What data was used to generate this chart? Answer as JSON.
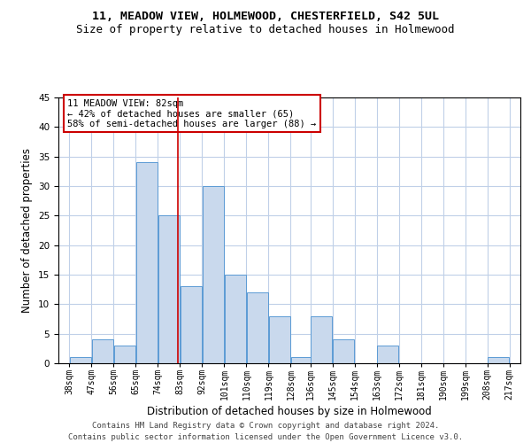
{
  "title_line1": "11, MEADOW VIEW, HOLMEWOOD, CHESTERFIELD, S42 5UL",
  "title_line2": "Size of property relative to detached houses in Holmewood",
  "xlabel": "Distribution of detached houses by size in Holmewood",
  "ylabel": "Number of detached properties",
  "bar_color": "#c9d9ed",
  "bar_edge_color": "#5b9bd5",
  "annotation_line": "11 MEADOW VIEW: 82sqm",
  "annotation_line2": "← 42% of detached houses are smaller (65)",
  "annotation_line3": "58% of semi-detached houses are larger (88) →",
  "property_size": 82,
  "bins": [
    38,
    47,
    56,
    65,
    74,
    83,
    92,
    101,
    110,
    119,
    128,
    136,
    145,
    154,
    163,
    172,
    181,
    190,
    199,
    208,
    217
  ],
  "counts": [
    1,
    4,
    3,
    34,
    25,
    13,
    30,
    15,
    12,
    8,
    1,
    8,
    4,
    0,
    3,
    0,
    0,
    0,
    0,
    1
  ],
  "tick_labels": [
    "38sqm",
    "47sqm",
    "56sqm",
    "65sqm",
    "74sqm",
    "83sqm",
    "92sqm",
    "101sqm",
    "110sqm",
    "119sqm",
    "128sqm",
    "136sqm",
    "145sqm",
    "154sqm",
    "163sqm",
    "172sqm",
    "181sqm",
    "190sqm",
    "199sqm",
    "208sqm",
    "217sqm"
  ],
  "ylim": [
    0,
    45
  ],
  "yticks": [
    0,
    5,
    10,
    15,
    20,
    25,
    30,
    35,
    40,
    45
  ],
  "footer_line1": "Contains HM Land Registry data © Crown copyright and database right 2024.",
  "footer_line2": "Contains public sector information licensed under the Open Government Licence v3.0.",
  "background_color": "#ffffff",
  "grid_color": "#c0d0e8",
  "annotation_box_color": "#ffffff",
  "annotation_box_edge_color": "#cc0000",
  "vline_color": "#cc0000",
  "title_fontsize": 9.5,
  "subtitle_fontsize": 9,
  "axis_label_fontsize": 8.5,
  "tick_fontsize": 7,
  "annotation_fontsize": 7.5,
  "footer_fontsize": 6.5
}
